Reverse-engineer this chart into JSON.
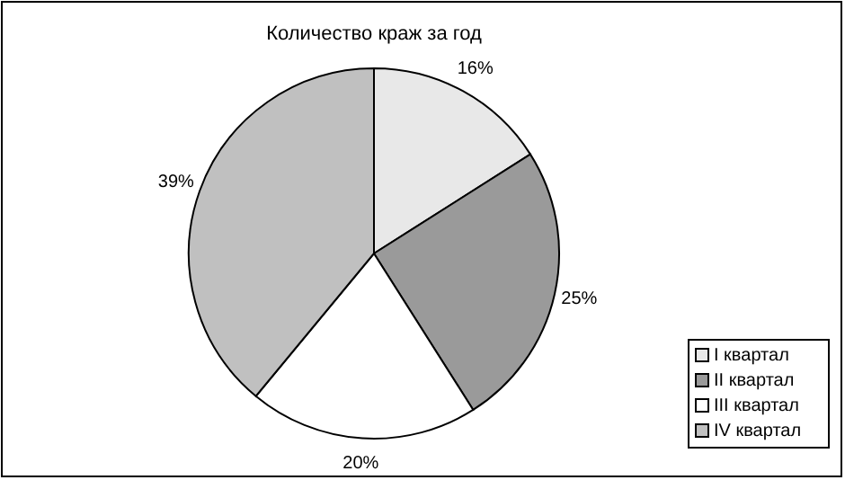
{
  "chart_data": {
    "type": "pie",
    "title": "Количество краж за год",
    "categories": [
      "I квартал",
      "II квартал",
      "III квартал",
      "IV квартал"
    ],
    "values": [
      16,
      25,
      20,
      39
    ],
    "value_labels": [
      "16%",
      "25%",
      "20%",
      "39%"
    ],
    "colors": [
      "#e8e8e8",
      "#9a9a9a",
      "#ffffff",
      "#c0c0c0"
    ],
    "legend": "right"
  }
}
